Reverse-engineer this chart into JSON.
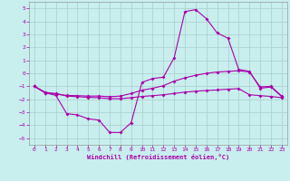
{
  "title": "",
  "xlabel": "Windchill (Refroidissement éolien,°C)",
  "ylabel": "",
  "xlim": [
    -0.5,
    23.5
  ],
  "ylim": [
    -5.5,
    5.5
  ],
  "yticks": [
    -5,
    -4,
    -3,
    -2,
    -1,
    0,
    1,
    2,
    3,
    4,
    5
  ],
  "xticks": [
    0,
    1,
    2,
    3,
    4,
    5,
    6,
    7,
    8,
    9,
    10,
    11,
    12,
    13,
    14,
    15,
    16,
    17,
    18,
    19,
    20,
    21,
    22,
    23
  ],
  "background_color": "#c8eeee",
  "line_color": "#aa00aa",
  "grid_color": "#aacccc",
  "line1_x": [
    0,
    1,
    2,
    3,
    4,
    5,
    6,
    7,
    8,
    9,
    10,
    11,
    12,
    13,
    14,
    15,
    16,
    17,
    18,
    19,
    20,
    21,
    22,
    23
  ],
  "line1_y": [
    -1.0,
    -1.5,
    -1.7,
    -3.1,
    -3.2,
    -3.5,
    -3.6,
    -4.55,
    -4.55,
    -3.8,
    -0.7,
    -0.4,
    -0.3,
    1.2,
    4.75,
    4.9,
    4.2,
    3.1,
    2.7,
    0.3,
    0.15,
    -1.15,
    -1.05,
    -1.8
  ],
  "line2_x": [
    0,
    1,
    2,
    3,
    4,
    5,
    6,
    7,
    8,
    9,
    10,
    11,
    12,
    13,
    14,
    15,
    16,
    17,
    18,
    19,
    20,
    21,
    22,
    23
  ],
  "line2_y": [
    -1.0,
    -1.45,
    -1.6,
    -1.7,
    -1.72,
    -1.75,
    -1.75,
    -1.8,
    -1.75,
    -1.55,
    -1.3,
    -1.15,
    -0.95,
    -0.6,
    -0.35,
    -0.15,
    0.0,
    0.1,
    0.15,
    0.2,
    0.1,
    -1.05,
    -1.0,
    -1.75
  ],
  "line3_x": [
    0,
    1,
    2,
    3,
    4,
    5,
    6,
    7,
    8,
    9,
    10,
    11,
    12,
    13,
    14,
    15,
    16,
    17,
    18,
    19,
    20,
    21,
    22,
    23
  ],
  "line3_y": [
    -1.0,
    -1.5,
    -1.55,
    -1.75,
    -1.8,
    -1.85,
    -1.88,
    -1.95,
    -1.95,
    -1.88,
    -1.78,
    -1.72,
    -1.65,
    -1.55,
    -1.45,
    -1.38,
    -1.32,
    -1.28,
    -1.22,
    -1.18,
    -1.65,
    -1.72,
    -1.78,
    -1.88
  ]
}
